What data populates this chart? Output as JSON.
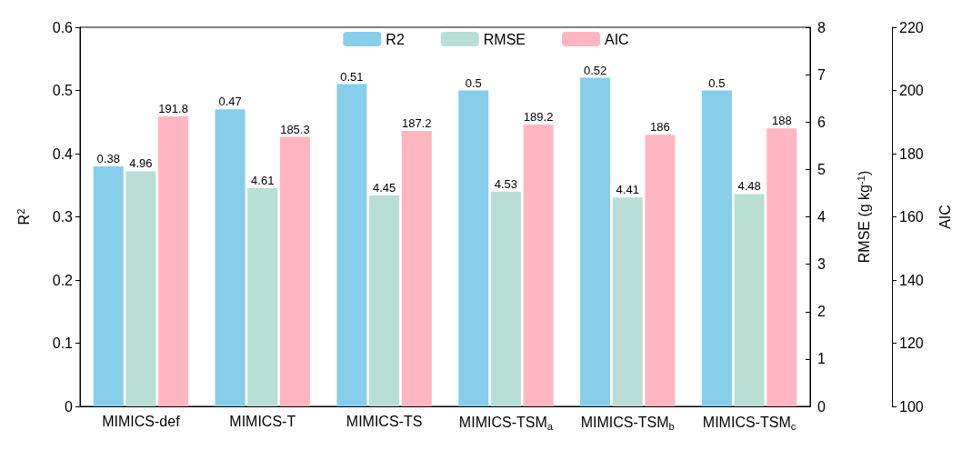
{
  "chart_data": {
    "type": "bar",
    "categories": [
      "MIMICS-def",
      "MIMICS-T",
      "MIMICS-TS",
      "MIMICS-TSM$_{a}$",
      "MIMICS-TSM$_{b}$",
      "MIMICS-TSM$_{c}$"
    ],
    "series": [
      {
        "name": "R2",
        "color": "#87ceeb",
        "values": [
          0.38,
          0.47,
          0.51,
          0.5,
          0.52,
          0.5
        ]
      },
      {
        "name": "RMSE",
        "color": "#b8ded6",
        "values": [
          4.96,
          4.61,
          4.45,
          4.53,
          4.41,
          4.48
        ],
        "axis": "y2"
      },
      {
        "name": "AIC",
        "color": "#ffb6c1",
        "values": [
          191.8,
          185.3,
          187.2,
          189.2,
          186,
          188
        ],
        "axis": "y3"
      }
    ],
    "ylabel": "R$^{2}$",
    "y2label": "RMSE (g kg$^{-1}$)",
    "y3label": "AIC",
    "ylim": [
      0,
      0.6
    ],
    "yticks": [
      0,
      0.1,
      0.2,
      0.3,
      0.4,
      0.5,
      0.6
    ],
    "y2lim": [
      0,
      8
    ],
    "y2ticks": [
      0,
      1,
      2,
      3,
      4,
      5,
      6,
      7,
      8
    ],
    "y3lim": [
      100,
      220
    ],
    "y3ticks": [
      100,
      120,
      140,
      160,
      180,
      200,
      220
    ],
    "data_labels": true,
    "legend": "top",
    "grid": false
  }
}
